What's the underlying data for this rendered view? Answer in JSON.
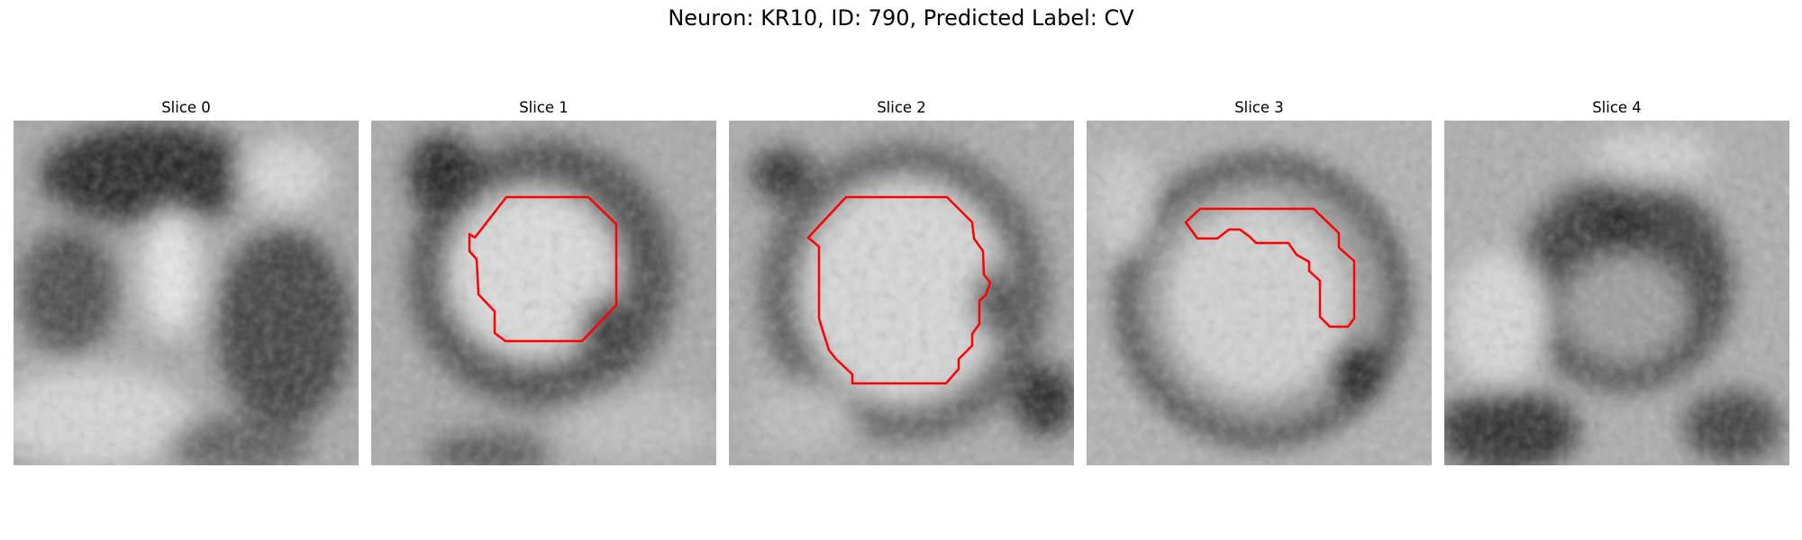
{
  "figure": {
    "title": "Neuron: KR10, ID: 790, Predicted Label: CV"
  },
  "panels": [
    {
      "title": "Slice 0",
      "has_contour": false,
      "image": "grayscale-em-slice-0"
    },
    {
      "title": "Slice 1",
      "has_contour": true,
      "image": "grayscale-em-slice-1"
    },
    {
      "title": "Slice 2",
      "has_contour": true,
      "image": "grayscale-em-slice-2"
    },
    {
      "title": "Slice 3",
      "has_contour": true,
      "image": "grayscale-em-slice-3"
    },
    {
      "title": "Slice 4",
      "has_contour": false,
      "image": "grayscale-em-slice-4"
    }
  ],
  "colors": {
    "contour": "#ff0000",
    "background": "#ffffff"
  }
}
